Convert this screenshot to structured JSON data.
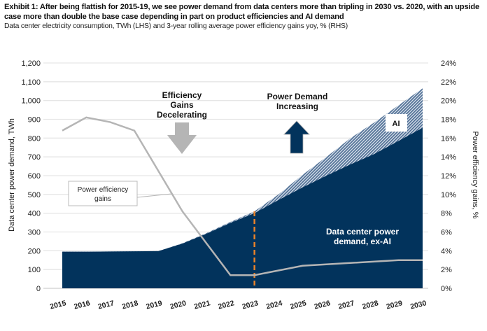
{
  "title": "Exhibit 1: After being flattish for 2015-19, we see power demand from data centers more than tripling in 2030 vs. 2020, with an upside case more than double the base case depending in part on product efficiencies and AI demand",
  "subtitle": "Data center electricity consumption, TWh (LHS) and 3-year rolling average power efficiency gains yoy, % (RHS)",
  "chart_data": {
    "type": "area",
    "x": [
      2015,
      2016,
      2017,
      2018,
      2019,
      2020,
      2021,
      2022,
      2023,
      2024,
      2025,
      2026,
      2027,
      2028,
      2029,
      2030
    ],
    "x_tick_labels": [
      "2015",
      "2016",
      "2017",
      "2018",
      "2019",
      "2020",
      "2021",
      "2022",
      "2023",
      "2024",
      "2025",
      "2026",
      "2027",
      "2028",
      "2029",
      "2030"
    ],
    "series": [
      {
        "name": "Data center power demand, ex-AI",
        "axis": "left",
        "type": "stacked-area",
        "color": "#02335c",
        "values": [
          195,
          195,
          196,
          197,
          198,
          238,
          290,
          348,
          400,
          470,
          537,
          600,
          660,
          716,
          785,
          855
        ]
      },
      {
        "name": "AI",
        "axis": "left",
        "type": "stacked-area",
        "color": "#8ea6c2",
        "pattern": "hatched",
        "values": [
          0,
          0,
          0,
          0,
          0,
          2,
          4,
          6,
          10,
          30,
          67,
          100,
          140,
          168,
          190,
          210
        ]
      },
      {
        "name": "Power efficiency gains",
        "axis": "right",
        "type": "line",
        "color": "#b5b5b5",
        "values": [
          16.8,
          18.2,
          17.7,
          16.8,
          null,
          8.2,
          null,
          1.4,
          1.4,
          null,
          2.4,
          null,
          null,
          null,
          3.0,
          3.0
        ]
      }
    ],
    "ylabel_left": "Data center power demand, TWh",
    "ylabel_right": "Power efficiency gains, %",
    "ylim_left": [
      0,
      1200
    ],
    "ylim_right": [
      0,
      24
    ],
    "y_ticks_left": [
      "0",
      "100",
      "200",
      "300",
      "400",
      "500",
      "600",
      "700",
      "800",
      "900",
      "1,000",
      "1,100",
      "1,200"
    ],
    "y_ticks_right": [
      "0%",
      "2%",
      "4%",
      "6%",
      "8%",
      "10%",
      "12%",
      "14%",
      "16%",
      "18%",
      "20%",
      "22%",
      "24%"
    ],
    "grid": true,
    "vertical_marker": {
      "x": 2023,
      "style": "dashed",
      "color": "#e8822a"
    },
    "annotations": {
      "efficiency": [
        "Efficiency",
        "Gains",
        "Decelerating"
      ],
      "demand": [
        "Power Demand",
        "Increasing"
      ],
      "ai_label": "AI",
      "exai_label": [
        "Data center power",
        "demand, ex-AI"
      ],
      "line_callout": [
        "Power  efficiency",
        "gains"
      ]
    }
  }
}
